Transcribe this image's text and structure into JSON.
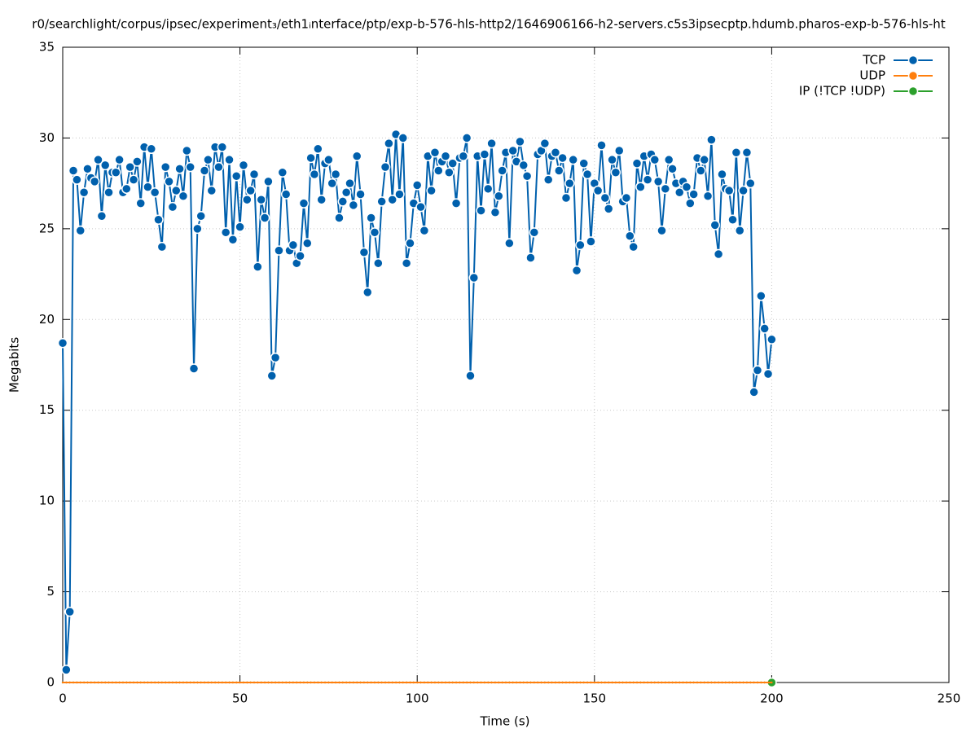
{
  "chart_data": {
    "type": "line",
    "title": "r0/searchlight/corpus/ipsec/experiment₃/eth1ᵢnterface/ptp/exp-b-576-hls-http2/1646906166-h2-servers.c5s3ipsecptp.hdumb.pharos-exp-b-576-hls-ht",
    "x_label": "Time (s)",
    "y_label": "Megabits",
    "xlim": [
      0,
      250
    ],
    "xticks": [
      0,
      50,
      100,
      150,
      200,
      250
    ],
    "ylim": [
      0,
      35
    ],
    "yticks": [
      0,
      5,
      10,
      15,
      20,
      25,
      30,
      35
    ],
    "grid": true,
    "legend": "top-right",
    "x": [
      0,
      1,
      2,
      3,
      4,
      5,
      6,
      7,
      8,
      9,
      10,
      11,
      12,
      13,
      14,
      15,
      16,
      17,
      18,
      19,
      20,
      21,
      22,
      23,
      24,
      25,
      26,
      27,
      28,
      29,
      30,
      31,
      32,
      33,
      34,
      35,
      36,
      37,
      38,
      39,
      40,
      41,
      42,
      43,
      44,
      45,
      46,
      47,
      48,
      49,
      50,
      51,
      52,
      53,
      54,
      55,
      56,
      57,
      58,
      59,
      60,
      61,
      62,
      63,
      64,
      65,
      66,
      67,
      68,
      69,
      70,
      71,
      72,
      73,
      74,
      75,
      76,
      77,
      78,
      79,
      80,
      81,
      82,
      83,
      84,
      85,
      86,
      87,
      88,
      89,
      90,
      91,
      92,
      93,
      94,
      95,
      96,
      97,
      98,
      99,
      100,
      101,
      102,
      103,
      104,
      105,
      106,
      107,
      108,
      109,
      110,
      111,
      112,
      113,
      114,
      115,
      116,
      117,
      118,
      119,
      120,
      121,
      122,
      123,
      124,
      125,
      126,
      127,
      128,
      129,
      130,
      131,
      132,
      133,
      134,
      135,
      136,
      137,
      138,
      139,
      140,
      141,
      142,
      143,
      144,
      145,
      146,
      147,
      148,
      149,
      150,
      151,
      152,
      153,
      154,
      155,
      156,
      157,
      158,
      159,
      160,
      161,
      162,
      163,
      164,
      165,
      166,
      167,
      168,
      169,
      170,
      171,
      172,
      173,
      174,
      175,
      176,
      177,
      178,
      179,
      180,
      181,
      182,
      183,
      184,
      185,
      186,
      187,
      188,
      189,
      190,
      191,
      192,
      193,
      194,
      195,
      196,
      197,
      198,
      199,
      200
    ],
    "series": [
      {
        "name": "TCP",
        "color": "#0060ad",
        "values": [
          18.7,
          0.7,
          3.9,
          28.2,
          27.7,
          24.9,
          27.0,
          28.3,
          27.8,
          27.6,
          28.8,
          25.7,
          28.5,
          27.0,
          28.1,
          28.1,
          28.8,
          27.0,
          27.2,
          28.4,
          27.7,
          28.7,
          26.4,
          29.5,
          27.3,
          29.4,
          27.0,
          25.5,
          24.0,
          28.4,
          27.6,
          26.2,
          27.1,
          28.3,
          26.8,
          29.3,
          28.4,
          17.3,
          25.0,
          25.7,
          28.2,
          28.8,
          27.1,
          29.5,
          28.4,
          29.5,
          24.8,
          28.8,
          24.4,
          27.9,
          25.1,
          28.5,
          26.6,
          27.1,
          28.0,
          22.9,
          26.6,
          25.6,
          27.6,
          16.9,
          17.9,
          23.8,
          28.1,
          26.9,
          23.8,
          24.1,
          23.1,
          23.5,
          26.4,
          24.2,
          28.9,
          28.0,
          29.4,
          26.6,
          28.6,
          28.8,
          27.5,
          28.0,
          25.6,
          26.5,
          27.0,
          27.5,
          26.3,
          29.0,
          26.9,
          23.7,
          21.5,
          25.6,
          24.8,
          23.1,
          26.5,
          28.4,
          29.7,
          26.6,
          30.2,
          26.9,
          30.0,
          23.1,
          24.2,
          26.4,
          27.4,
          26.2,
          24.9,
          29.0,
          27.1,
          29.2,
          28.2,
          28.7,
          29.0,
          28.1,
          28.6,
          26.4,
          28.9,
          29.0,
          30.0,
          16.9,
          22.3,
          29.0,
          26.0,
          29.1,
          27.2,
          29.7,
          25.9,
          26.8,
          28.2,
          29.2,
          24.2,
          29.3,
          28.7,
          29.8,
          28.5,
          27.9,
          23.4,
          24.8,
          29.1,
          29.3,
          29.7,
          27.7,
          29.0,
          29.2,
          28.2,
          28.9,
          26.7,
          27.5,
          28.8,
          22.7,
          24.1,
          28.6,
          28.0,
          24.3,
          27.5,
          27.1,
          29.6,
          26.7,
          26.1,
          28.8,
          28.1,
          29.3,
          26.5,
          26.7,
          24.6,
          24.0,
          28.6,
          27.3,
          29.0,
          27.7,
          29.1,
          28.8,
          27.6,
          24.9,
          27.2,
          28.8,
          28.3,
          27.5,
          27.0,
          27.6,
          27.3,
          26.4,
          26.9,
          28.9,
          28.2,
          28.8,
          26.8,
          29.9,
          25.2,
          23.6,
          28.0,
          27.2,
          27.1,
          25.5,
          29.2,
          24.9,
          27.1,
          29.2,
          27.5,
          16.0,
          17.2,
          21.3,
          19.5,
          17.0,
          18.9
        ]
      },
      {
        "name": "UDP",
        "color": "#ff7f0e",
        "values": [
          0,
          0,
          0,
          0,
          0,
          0,
          0,
          0,
          0,
          0,
          0,
          0,
          0,
          0,
          0,
          0,
          0,
          0,
          0,
          0,
          0,
          0,
          0,
          0,
          0,
          0,
          0,
          0,
          0,
          0,
          0,
          0,
          0,
          0,
          0,
          0,
          0,
          0,
          0,
          0,
          0,
          0,
          0,
          0,
          0,
          0,
          0,
          0,
          0,
          0,
          0,
          0,
          0,
          0,
          0,
          0,
          0,
          0,
          0,
          0,
          0,
          0,
          0,
          0,
          0,
          0,
          0,
          0,
          0,
          0,
          0,
          0,
          0,
          0,
          0,
          0,
          0,
          0,
          0,
          0,
          0,
          0,
          0,
          0,
          0,
          0,
          0,
          0,
          0,
          0,
          0,
          0,
          0,
          0,
          0,
          0,
          0,
          0,
          0,
          0,
          0,
          0,
          0,
          0,
          0,
          0,
          0,
          0,
          0,
          0,
          0,
          0,
          0,
          0,
          0,
          0,
          0,
          0,
          0,
          0,
          0,
          0,
          0,
          0,
          0,
          0,
          0,
          0,
          0,
          0,
          0,
          0,
          0,
          0,
          0,
          0,
          0,
          0,
          0,
          0,
          0,
          0,
          0,
          0,
          0,
          0,
          0,
          0,
          0,
          0,
          0,
          0,
          0,
          0,
          0,
          0,
          0,
          0,
          0,
          0,
          0,
          0,
          0,
          0,
          0,
          0,
          0,
          0,
          0,
          0,
          0,
          0,
          0,
          0,
          0,
          0,
          0,
          0,
          0,
          0,
          0,
          0,
          0,
          0,
          0,
          0,
          0,
          0,
          0,
          0,
          0,
          0,
          0,
          0,
          0,
          0,
          0,
          0,
          0,
          0,
          0
        ]
      },
      {
        "name": "IP (!TCP  !UDP)",
        "color": "#2ca02c",
        "values": [
          0,
          0,
          0,
          0,
          0,
          0,
          0,
          0,
          0,
          0,
          0,
          0,
          0,
          0,
          0,
          0,
          0,
          0,
          0,
          0,
          0,
          0,
          0,
          0,
          0,
          0,
          0,
          0,
          0,
          0,
          0,
          0,
          0,
          0,
          0,
          0,
          0,
          0,
          0,
          0,
          0,
          0,
          0,
          0,
          0,
          0,
          0,
          0,
          0,
          0,
          0,
          0,
          0,
          0,
          0,
          0,
          0,
          0,
          0,
          0,
          0,
          0,
          0,
          0,
          0,
          0,
          0,
          0,
          0,
          0,
          0,
          0,
          0,
          0,
          0,
          0,
          0,
          0,
          0,
          0,
          0,
          0,
          0,
          0,
          0,
          0,
          0,
          0,
          0,
          0,
          0,
          0,
          0,
          0,
          0,
          0,
          0,
          0,
          0,
          0,
          0,
          0,
          0,
          0,
          0,
          0,
          0,
          0,
          0,
          0,
          0,
          0,
          0,
          0,
          0,
          0,
          0,
          0,
          0,
          0,
          0,
          0,
          0,
          0,
          0,
          0,
          0,
          0,
          0,
          0,
          0,
          0,
          0,
          0,
          0,
          0,
          0,
          0,
          0,
          0,
          0,
          0,
          0,
          0,
          0,
          0,
          0,
          0,
          0,
          0,
          0,
          0,
          0,
          0,
          0,
          0,
          0,
          0,
          0,
          0,
          0,
          0,
          0,
          0,
          0,
          0,
          0,
          0,
          0,
          0,
          0,
          0,
          0,
          0,
          0,
          0,
          0,
          0,
          0,
          0,
          0,
          0,
          0,
          0,
          0,
          0,
          0,
          0,
          0,
          0,
          0,
          0,
          0,
          0,
          0,
          0,
          0,
          0,
          0,
          0,
          0
        ]
      }
    ]
  }
}
